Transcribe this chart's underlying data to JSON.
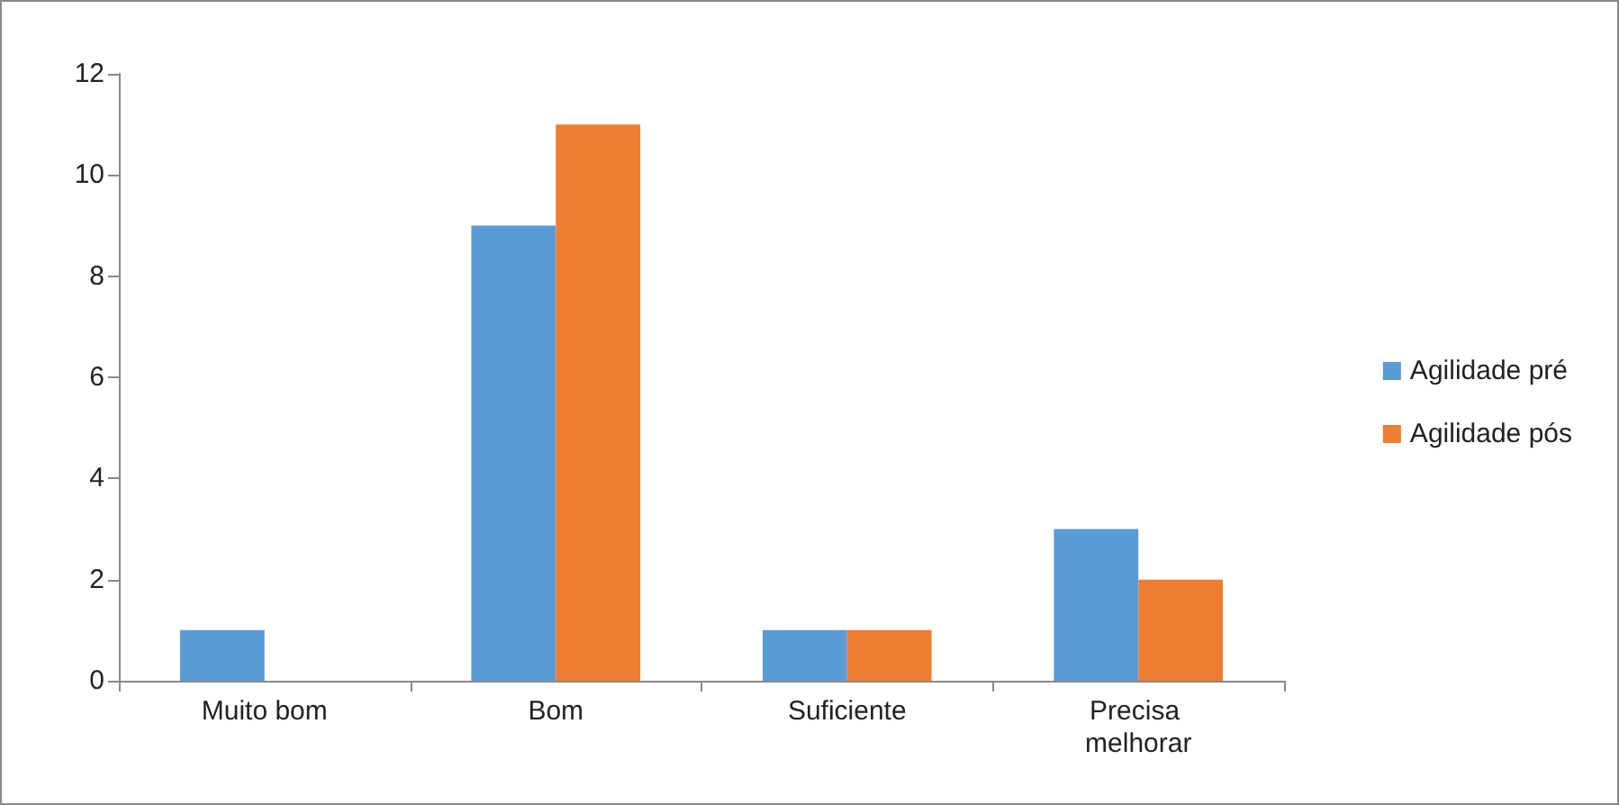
{
  "chart_data": {
    "type": "bar",
    "categories": [
      "Muito bom",
      "Bom",
      "Suficiente",
      "Precisa melhorar"
    ],
    "series": [
      {
        "name": "Agilidade pré",
        "color": "#5b9bd5",
        "values": [
          1,
          9,
          1,
          3
        ]
      },
      {
        "name": "Agilidade pós",
        "color": "#ed7d31",
        "values": [
          0,
          11,
          1,
          2
        ]
      }
    ],
    "ylim": [
      0,
      12
    ],
    "yticks": [
      0,
      2,
      4,
      6,
      8,
      10,
      12
    ],
    "legend": "right"
  }
}
